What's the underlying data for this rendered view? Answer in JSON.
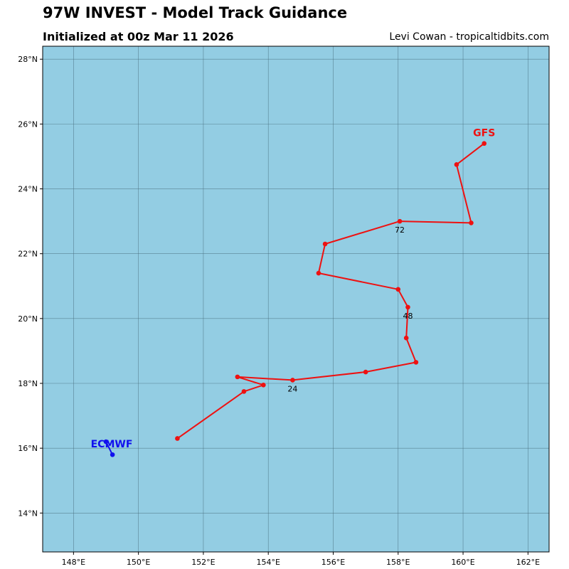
{
  "header": {
    "title": "97W INVEST - Model Track Guidance",
    "subtitle": "Initialized at 00z Mar 11 2026",
    "credit": "Levi Cowan - tropicaltidbits.com"
  },
  "colors": {
    "ocean": "#93cde3",
    "grid": "#4a6f80",
    "gfs": "#ee1111",
    "ecmwf": "#1111ee"
  },
  "map": {
    "lon_range": [
      147.05,
      162.65
    ],
    "lat_range": [
      12.8,
      28.4
    ],
    "lon_ticks": [
      148,
      150,
      152,
      154,
      156,
      158,
      160,
      162
    ],
    "lon_tick_labels": [
      "148°E",
      "150°E",
      "152°E",
      "154°E",
      "156°E",
      "158°E",
      "160°E",
      "162°E"
    ],
    "lat_ticks": [
      14,
      16,
      18,
      20,
      22,
      24,
      26,
      28
    ],
    "lat_tick_labels": [
      "14°N",
      "16°N",
      "18°N",
      "20°N",
      "22°N",
      "24°N",
      "26°N",
      "28°N"
    ]
  },
  "tracks": [
    {
      "model": "GFS",
      "color_key": "gfs",
      "points": [
        {
          "lon": 151.2,
          "lat": 16.3
        },
        {
          "lon": 153.25,
          "lat": 17.75
        },
        {
          "lon": 153.85,
          "lat": 17.95
        },
        {
          "lon": 153.05,
          "lat": 18.2
        },
        {
          "lon": 154.75,
          "lat": 18.1,
          "hour_label": "24"
        },
        {
          "lon": 157.0,
          "lat": 18.35
        },
        {
          "lon": 158.55,
          "lat": 18.65
        },
        {
          "lon": 158.25,
          "lat": 19.4
        },
        {
          "lon": 158.3,
          "lat": 20.35,
          "hour_label": "48"
        },
        {
          "lon": 158.0,
          "lat": 20.9
        },
        {
          "lon": 155.55,
          "lat": 21.4
        },
        {
          "lon": 155.75,
          "lat": 22.3
        },
        {
          "lon": 158.05,
          "lat": 23.0,
          "hour_label": "72"
        },
        {
          "lon": 160.25,
          "lat": 22.95
        },
        {
          "lon": 159.8,
          "lat": 24.75
        },
        {
          "lon": 160.65,
          "lat": 25.4
        }
      ]
    },
    {
      "model": "ECMWF",
      "color_key": "ecmwf",
      "points": [
        {
          "lon": 149.0,
          "lat": 16.2
        },
        {
          "lon": 149.2,
          "lat": 15.8
        }
      ]
    }
  ]
}
